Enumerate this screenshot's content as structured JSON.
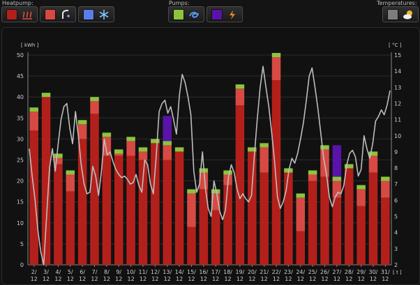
{
  "header": {
    "heatpump_label": "Heatpump:",
    "pumps_label": "Pumps:",
    "temperatures_label": "Temperatures:"
  },
  "colors": {
    "heating": "#b3201b",
    "hotwater": "#d64a43",
    "cooling": "#5a7de8",
    "pump1": "#8cc43c",
    "pump2": "#5a13a8",
    "temp_bg": "#7d7d7d",
    "temp_line": "#bdbdbd"
  },
  "icons": [
    "heating-icon",
    "hot-water-tap-icon",
    "snowflake-icon",
    "pump-swirl-icon",
    "pump-bolt-icon",
    "weather-sun-cloud-icon"
  ],
  "chart_data": {
    "type": "bar",
    "ylabel": "[ kWh ]",
    "y2label": "[ °C ]",
    "xunit": "[ t ]",
    "ylim": [
      0,
      50
    ],
    "y2lim": [
      2,
      15
    ],
    "yticks": [
      "0",
      "5",
      "10",
      "15",
      "20",
      "25",
      "30",
      "35",
      "40",
      "45",
      "50"
    ],
    "y2ticks": [
      "2",
      "3",
      "4",
      "5",
      "6",
      "7",
      "8",
      "9",
      "10",
      "11",
      "12",
      "13",
      "14",
      "15"
    ],
    "categories": [
      "2/12",
      "3/12",
      "4/12",
      "5/12",
      "6/12",
      "7/12",
      "8/12",
      "9/12",
      "10/12",
      "11/12",
      "12/12",
      "13/12",
      "14/12",
      "15/12",
      "16/12",
      "17/12",
      "18/12",
      "19/12",
      "20/12",
      "21/12",
      "22/12",
      "23/12",
      "24/12",
      "25/12",
      "26/12",
      "27/12",
      "28/12",
      "29/12",
      "30/12",
      "31/12"
    ],
    "series": [
      {
        "values": [
          32,
          40,
          24,
          17.5,
          30,
          36,
          26,
          26,
          26,
          25,
          29,
          25,
          27,
          9,
          18,
          13,
          19,
          38,
          27,
          22,
          44,
          22,
          8,
          20,
          21,
          16,
          23,
          14,
          22,
          16
        ]
      },
      {
        "values": [
          4.5,
          0,
          1.5,
          4,
          3.5,
          3,
          4.5,
          0.5,
          3.5,
          2,
          0,
          3.5,
          0,
          8,
          4,
          4,
          2.5,
          4,
          0,
          6,
          5.5,
          0,
          8,
          1.5,
          6.5,
          4,
          0,
          4,
          4,
          4
        ]
      },
      {
        "values": [
          1,
          1,
          1,
          1,
          1,
          1,
          1,
          1,
          1,
          1,
          1,
          1,
          1,
          1,
          1,
          1,
          1,
          1,
          1,
          1,
          1,
          1,
          1,
          1,
          1,
          1,
          1,
          1,
          1,
          1
        ]
      },
      {
        "values": [
          0,
          0,
          0,
          0,
          0,
          0,
          0,
          0,
          0,
          0,
          0,
          6,
          0,
          0,
          0,
          0,
          0,
          0,
          0,
          0,
          0,
          0,
          0,
          0,
          0,
          7.5,
          0,
          0,
          0,
          0
        ]
      }
    ],
    "temperature": [
      9.2,
      7.5,
      6.0,
      4.1,
      2.8,
      2.0,
      5.0,
      8.0,
      9.2,
      7.8,
      9.5,
      11.0,
      11.8,
      12.0,
      10.5,
      9.5,
      11.5,
      10.0,
      8.2,
      7.0,
      6.4,
      6.5,
      8.1,
      7.5,
      6.3,
      7.8,
      9.8,
      8.8,
      9.0,
      8.4,
      7.9,
      7.6,
      7.4,
      7.5,
      7.3,
      7.0,
      7.1,
      7.6,
      6.9,
      6.5,
      8.5,
      8.2,
      7.0,
      6.4,
      8.8,
      11.5,
      12.0,
      12.2,
      11.4,
      11.8,
      11.0,
      10.1,
      12.5,
      13.8,
      13.3,
      12.4,
      11.3,
      7.8,
      6.5,
      7.0,
      9.0,
      6.8,
      5.5,
      5.0,
      7.2,
      6.4,
      5.3,
      4.8,
      5.4,
      7.4,
      8.2,
      7.7,
      6.7,
      6.1,
      6.4,
      6.1,
      5.9,
      6.3,
      8.8,
      11.0,
      13.0,
      14.3,
      13.0,
      11.8,
      10.2,
      8.4,
      6.2,
      5.5,
      5.9,
      6.6,
      7.9,
      8.6,
      8.3,
      8.9,
      9.8,
      10.8,
      12.2,
      13.7,
      14.2,
      13.0,
      11.7,
      10.2,
      8.6,
      7.6,
      6.2,
      5.6,
      6.2,
      6.5,
      6.4,
      6.9,
      8.2,
      8.9,
      9.1,
      8.7,
      7.5,
      7.9,
      10.0,
      9.2,
      8.6,
      9.5,
      10.9,
      11.2,
      11.6,
      11.3,
      11.9,
      12.8
    ]
  }
}
